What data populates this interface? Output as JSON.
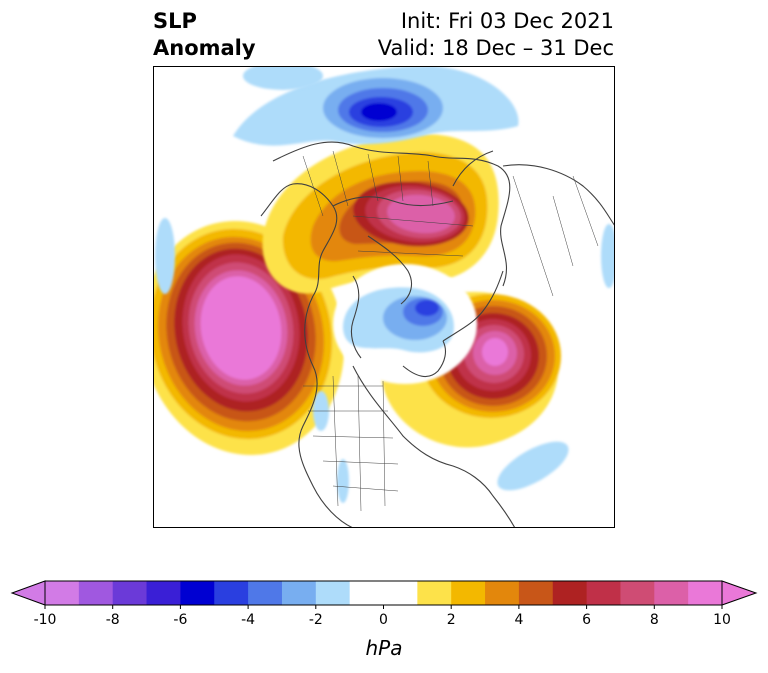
{
  "title": {
    "left_line1": "SLP",
    "left_line2": "Anomaly",
    "right_line1": "Init: Fri 03 Dec 2021",
    "right_line2": "Valid: 18 Dec – 31 Dec"
  },
  "colorbar": {
    "units": "hPa",
    "min": -10,
    "max": 10,
    "step": 1,
    "tick_labels": [
      "-10",
      "-8",
      "-6",
      "-4",
      "-2",
      "0",
      "2",
      "4",
      "6",
      "8",
      "10"
    ],
    "extend": "both",
    "colors": [
      "#d27be6",
      "#a058e0",
      "#6b3ad8",
      "#3a1fd6",
      "#0000d2",
      "#2a3fe0",
      "#4f78e8",
      "#78aef0",
      "#aedcfa",
      "#ffffff",
      "#ffffff",
      "#fde24a",
      "#f3b800",
      "#e3870c",
      "#c85618",
      "#ae2222",
      "#c03048",
      "#cf4c74",
      "#dc60a8",
      "#ea78d8"
    ]
  },
  "map": {
    "projection": "north-polar-stereographic",
    "features": [
      "coastlines",
      "country-borders",
      "state-borders"
    ],
    "anomaly_centers": [
      {
        "region": "North Pacific",
        "value": 10
      },
      {
        "region": "Northern Europe / Scandinavia",
        "value": 10
      },
      {
        "region": "North Atlantic",
        "value": 10
      },
      {
        "region": "Central Arctic",
        "value": -5
      },
      {
        "region": "Siberia",
        "value": -6
      }
    ]
  }
}
